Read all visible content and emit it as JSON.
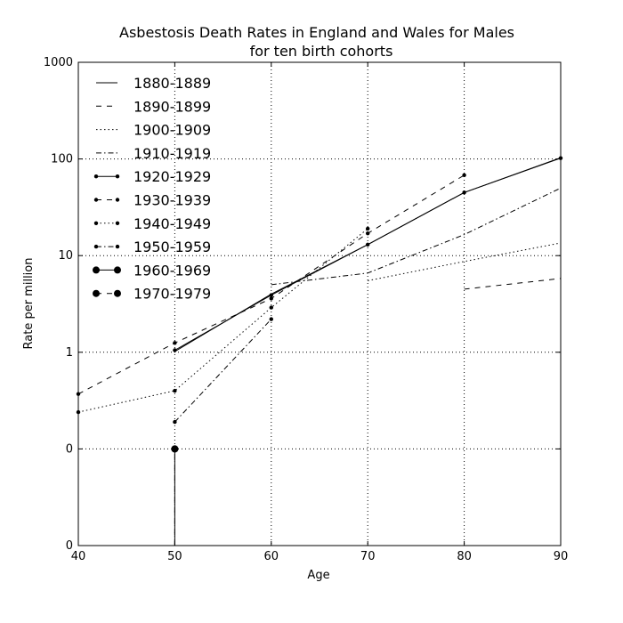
{
  "chart_data": {
    "type": "line",
    "title": [
      "Asbestosis Death Rates in England and Wales for Males",
      "for ten birth cohorts"
    ],
    "xlabel": "Age",
    "ylabel": "Rate per million",
    "xlim": [
      40,
      90
    ],
    "ylim": [
      0.01,
      1000
    ],
    "yscale": "log",
    "x_ticks": [
      40,
      50,
      60,
      70,
      80,
      90
    ],
    "y_ticks": [
      {
        "value": 0.01,
        "label": "0"
      },
      {
        "value": 0.1,
        "label": "0"
      },
      {
        "value": 1,
        "label": "1"
      },
      {
        "value": 10,
        "label": "10"
      },
      {
        "value": 100,
        "label": "100"
      },
      {
        "value": 1000,
        "label": "1000"
      }
    ],
    "grid": true,
    "legend_position": "upper-left",
    "series": [
      {
        "name": "1880-1889",
        "style": "solid",
        "marker": "none",
        "points": [
          [
            50,
            1.02
          ],
          [
            60,
            4.0
          ],
          [
            70,
            13.0
          ],
          [
            80,
            45.0
          ],
          [
            90,
            103.0
          ]
        ]
      },
      {
        "name": "1890-1899",
        "style": "dashed",
        "marker": "none",
        "points": [
          [
            80,
            4.5
          ],
          [
            90,
            5.8
          ]
        ]
      },
      {
        "name": "1900-1909",
        "style": "dotted",
        "marker": "none",
        "points": [
          [
            70,
            5.5
          ],
          [
            80,
            8.7
          ],
          [
            90,
            13.5
          ]
        ]
      },
      {
        "name": "1910-1919",
        "style": "dashdot",
        "marker": "none",
        "points": [
          [
            60,
            5.0
          ],
          [
            70,
            6.6
          ],
          [
            80,
            16.5
          ],
          [
            90,
            50.0
          ]
        ]
      },
      {
        "name": "1920-1929",
        "style": "solid",
        "marker": "small",
        "points": [
          [
            50,
            1.05
          ],
          [
            60,
            3.9
          ],
          [
            70,
            13.0
          ],
          [
            80,
            45.0
          ],
          [
            90,
            102.0
          ]
        ]
      },
      {
        "name": "1930-1939",
        "style": "dashed",
        "marker": "small",
        "points": [
          [
            40,
            0.37
          ],
          [
            50,
            1.25
          ],
          [
            60,
            3.6
          ],
          [
            70,
            17.0
          ],
          [
            80,
            68.0
          ]
        ]
      },
      {
        "name": "1940-1949",
        "style": "dotted",
        "marker": "small",
        "points": [
          [
            40,
            0.24
          ],
          [
            50,
            0.4
          ],
          [
            60,
            2.9
          ],
          [
            70,
            19.0
          ]
        ]
      },
      {
        "name": "1950-1959",
        "style": "dashdot",
        "marker": "small",
        "points": [
          [
            50,
            0.19
          ],
          [
            60,
            2.2
          ]
        ]
      },
      {
        "name": "1960-1969",
        "style": "solid",
        "marker": "large",
        "points": [
          [
            50,
            0.01
          ],
          [
            50,
            0.1
          ]
        ]
      },
      {
        "name": "1970-1979",
        "style": "dashed",
        "marker": "large",
        "points": [
          [
            50,
            0.01
          ],
          [
            50,
            0.1
          ]
        ]
      }
    ]
  }
}
